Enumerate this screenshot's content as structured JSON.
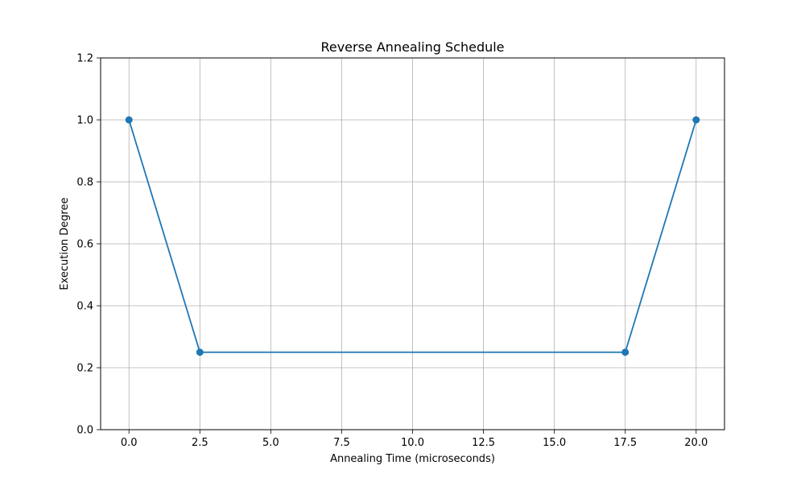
{
  "chart_data": {
    "type": "line",
    "title": "Reverse Annealing Schedule",
    "xlabel": "Annealing Time (microseconds)",
    "ylabel": "Execution Degree",
    "xlim": [
      -1.0,
      21.0
    ],
    "ylim": [
      0.0,
      1.2
    ],
    "xticks": [
      0.0,
      2.5,
      5.0,
      7.5,
      10.0,
      12.5,
      15.0,
      17.5,
      20.0
    ],
    "xtick_labels": [
      "0.0",
      "2.5",
      "5.0",
      "7.5",
      "10.0",
      "12.5",
      "15.0",
      "17.5",
      "20.0"
    ],
    "yticks": [
      0.0,
      0.2,
      0.4,
      0.6,
      0.8,
      1.0,
      1.2
    ],
    "ytick_labels": [
      "0.0",
      "0.2",
      "0.4",
      "0.6",
      "0.8",
      "1.0",
      "1.2"
    ],
    "grid": true,
    "series": [
      {
        "x": [
          0.0,
          2.5,
          17.5,
          20.0
        ],
        "y": [
          1.0,
          0.25,
          0.25,
          1.0
        ],
        "color": "#1f77b4",
        "marker": "circle"
      }
    ]
  },
  "colors": {
    "grid": "#b0b0b0",
    "axes": "#000000"
  }
}
